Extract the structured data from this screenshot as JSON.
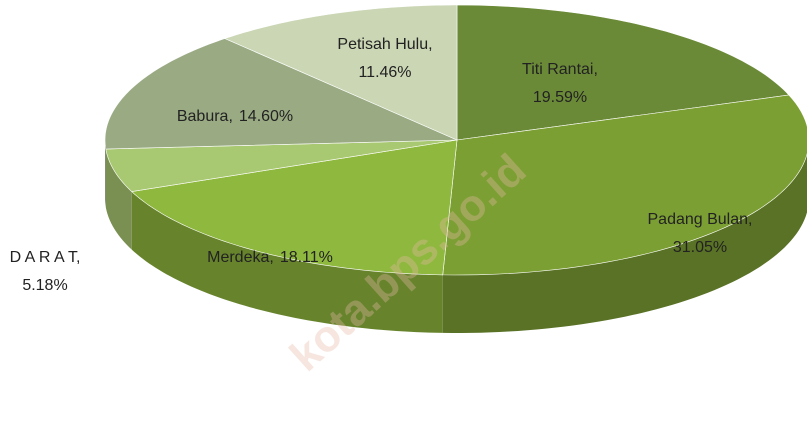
{
  "chart_data": {
    "type": "pie3d",
    "categories": [
      "Titi Rantai",
      "Padang Bulan",
      "Merdeka",
      "D A R A T",
      "Babura",
      "Petisah Hulu"
    ],
    "values": [
      19.59,
      31.05,
      18.11,
      5.18,
      14.6,
      11.46
    ],
    "value_labels": [
      "19.59%",
      "31.05%",
      "18.11%",
      "5.18%",
      "14.60%",
      "11.46%"
    ],
    "label_separator": ",",
    "colors": [
      "#6b8a38",
      "#7c9f34",
      "#8fb83f",
      "#a9c872",
      "#9aab84",
      "#cad6b4"
    ],
    "watermark": "kota.bps.go.id"
  }
}
